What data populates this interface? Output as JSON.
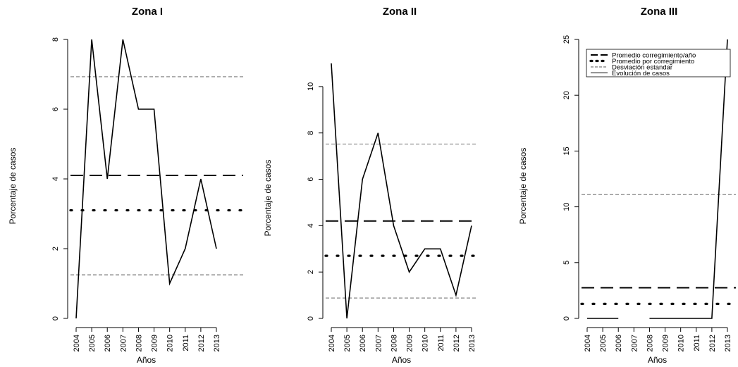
{
  "chart_data": [
    {
      "type": "line",
      "title": "Zona I",
      "xlabel": "Años",
      "ylabel": "Porcentaje de casos",
      "x": [
        "2004",
        "2005",
        "2006",
        "2007",
        "2008",
        "2009",
        "2010",
        "2011",
        "2012",
        "2013"
      ],
      "yticks": [
        "0",
        "2",
        "4",
        "6",
        "8"
      ],
      "ylim": [
        0,
        8
      ],
      "series": [
        {
          "key": "evolucion",
          "values": [
            0,
            8,
            4,
            8,
            6,
            6,
            1,
            2,
            4,
            2
          ]
        }
      ],
      "hlines": [
        {
          "key": "promedio_anio",
          "value": 4.1,
          "style": "long-dash"
        },
        {
          "key": "promedio_correg",
          "value": 3.1,
          "style": "dotted"
        },
        {
          "key": "desv_upper",
          "value": 6.93,
          "style": "thin-dash"
        },
        {
          "key": "desv_lower",
          "value": 1.25,
          "style": "thin-dash"
        }
      ]
    },
    {
      "type": "line",
      "title": "Zona II",
      "xlabel": "Años",
      "ylabel": "Porcentaje de casos",
      "x": [
        "2004",
        "2005",
        "2006",
        "2007",
        "2008",
        "2009",
        "2010",
        "2011",
        "2012",
        "2013"
      ],
      "yticks": [
        "0",
        "2",
        "4",
        "6",
        "8",
        "10"
      ],
      "ylim": [
        0,
        11
      ],
      "series": [
        {
          "key": "evolucion",
          "values": [
            11,
            0,
            6,
            8,
            4,
            2,
            3,
            3,
            1,
            4
          ]
        }
      ],
      "hlines": [
        {
          "key": "promedio_anio",
          "value": 4.2,
          "style": "long-dash"
        },
        {
          "key": "promedio_correg",
          "value": 2.7,
          "style": "dotted"
        },
        {
          "key": "desv_upper",
          "value": 7.52,
          "style": "thin-dash"
        },
        {
          "key": "desv_lower",
          "value": 0.88,
          "style": "thin-dash"
        }
      ]
    },
    {
      "type": "line",
      "title": "Zona III",
      "xlabel": "Años",
      "ylabel": "Porcentaje de casos",
      "x": [
        "2004",
        "2005",
        "2006",
        "2007",
        "2008",
        "2009",
        "2010",
        "2011",
        "2012",
        "2013"
      ],
      "yticks": [
        "0",
        "5",
        "10",
        "15",
        "20",
        "25"
      ],
      "ylim": [
        0,
        25
      ],
      "series": [
        {
          "key": "evolucion",
          "values": [
            0,
            0,
            0,
            null,
            0,
            0,
            0,
            0,
            0,
            25
          ]
        }
      ],
      "hlines": [
        {
          "key": "promedio_anio",
          "value": 2.75,
          "style": "long-dash"
        },
        {
          "key": "promedio_correg",
          "value": 1.3,
          "style": "dotted"
        },
        {
          "key": "desv_upper",
          "value": 11.1,
          "style": "thin-dash"
        }
      ],
      "legend": {
        "placement": "top",
        "entries": [
          {
            "label": "Promedio corregimiento/año",
            "style": "long-dash"
          },
          {
            "label": "Promedio por corregimiento",
            "style": "dotted"
          },
          {
            "label": "Desviación estandar",
            "style": "thin-dash"
          },
          {
            "label": "Evolución de casos",
            "style": "solid"
          }
        ]
      }
    }
  ]
}
